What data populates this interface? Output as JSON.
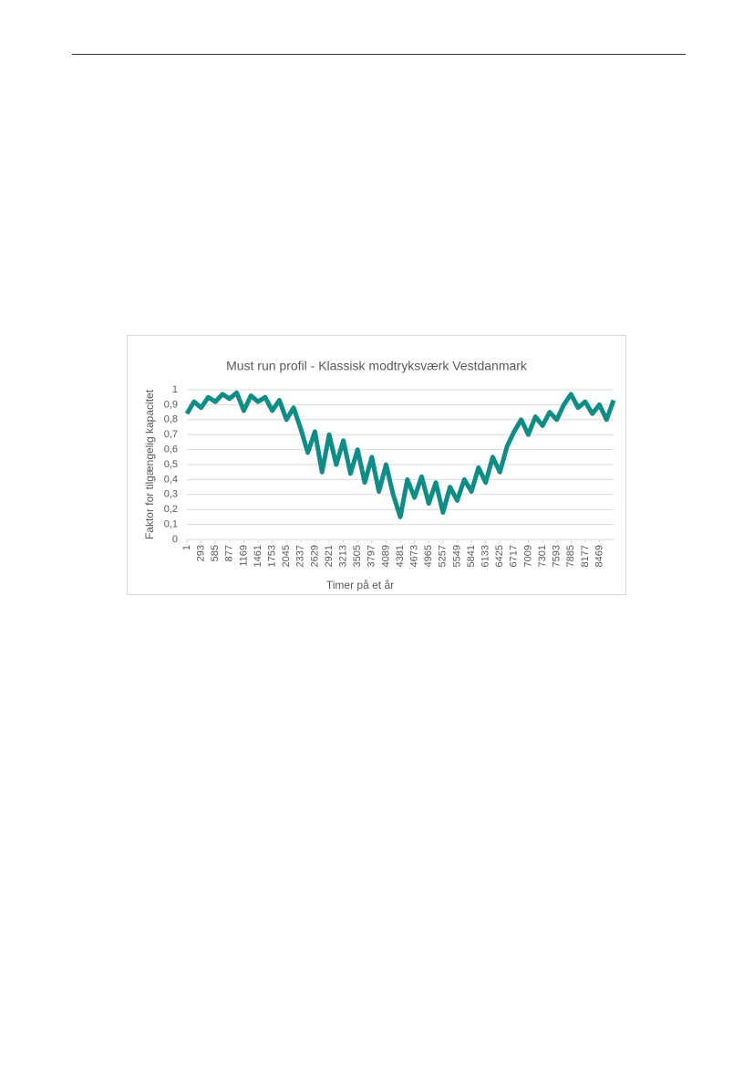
{
  "chart_data": {
    "type": "line",
    "title": "Must run profil - Klassisk modtryksværk Vestdanmark",
    "x_label": "Timer på et år",
    "y_label": "Faktor for tilgængelig kapacitet",
    "x": [
      1,
      147,
      293,
      439,
      585,
      731,
      877,
      1023,
      1169,
      1315,
      1461,
      1607,
      1753,
      1899,
      2045,
      2191,
      2337,
      2483,
      2629,
      2775,
      2921,
      3067,
      3213,
      3359,
      3505,
      3651,
      3797,
      3943,
      4089,
      4235,
      4381,
      4527,
      4673,
      4819,
      4965,
      5111,
      5257,
      5403,
      5549,
      5695,
      5841,
      5987,
      6133,
      6279,
      6425,
      6571,
      6717,
      6863,
      7009,
      7155,
      7301,
      7447,
      7593,
      7739,
      7885,
      8031,
      8177,
      8323,
      8469,
      8615,
      8760
    ],
    "series": [
      {
        "name": "Faktor",
        "color": "#0e8c86",
        "values": [
          0.84,
          0.92,
          0.88,
          0.95,
          0.92,
          0.97,
          0.94,
          0.98,
          0.86,
          0.96,
          0.92,
          0.95,
          0.86,
          0.93,
          0.8,
          0.88,
          0.74,
          0.58,
          0.72,
          0.45,
          0.7,
          0.5,
          0.66,
          0.44,
          0.6,
          0.38,
          0.55,
          0.32,
          0.5,
          0.3,
          0.15,
          0.4,
          0.28,
          0.42,
          0.24,
          0.38,
          0.18,
          0.35,
          0.26,
          0.4,
          0.32,
          0.48,
          0.38,
          0.55,
          0.45,
          0.62,
          0.72,
          0.8,
          0.7,
          0.82,
          0.76,
          0.85,
          0.8,
          0.9,
          0.97,
          0.88,
          0.92,
          0.84,
          0.9,
          0.8,
          0.93
        ]
      }
    ],
    "xlim": [
      1,
      8760
    ],
    "xticks": [
      1,
      293,
      585,
      877,
      1169,
      1461,
      1753,
      2045,
      2337,
      2629,
      2921,
      3213,
      3505,
      3797,
      4089,
      4381,
      4673,
      4965,
      5257,
      5549,
      5841,
      6133,
      6425,
      6717,
      7009,
      7301,
      7593,
      7885,
      8177,
      8469
    ],
    "ylim": [
      0,
      1
    ],
    "yticks": [
      0,
      {
        "value": 0.1,
        "label": "0,1"
      },
      {
        "value": 0.2,
        "label": "0,2"
      },
      {
        "value": 0.3,
        "label": "0,3"
      },
      {
        "value": 0.4,
        "label": "0,4"
      },
      {
        "value": 0.5,
        "label": "0,5"
      },
      {
        "value": 0.6,
        "label": "0,6"
      },
      {
        "value": 0.7,
        "label": "0,7"
      },
      {
        "value": 0.8,
        "label": "0,8"
      },
      {
        "value": 0.9,
        "label": "0,9"
      },
      1
    ],
    "grid": true
  }
}
